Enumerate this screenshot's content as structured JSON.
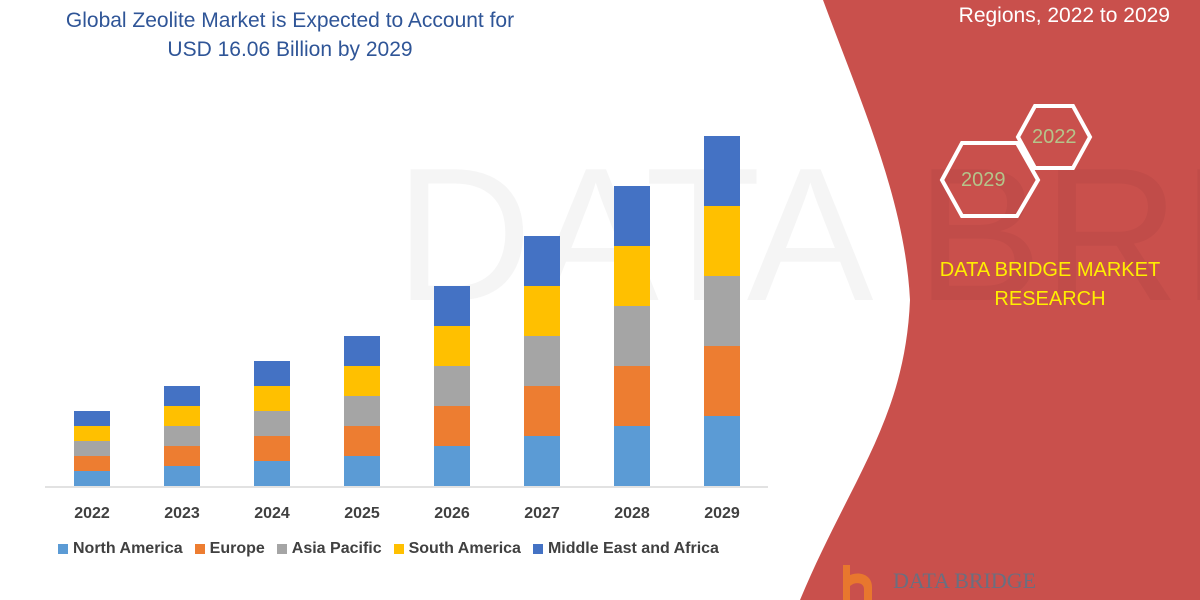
{
  "header": {
    "title": "Global Zeolite Market is Expected to Account for USD 16.06 Billion by 2029",
    "right_subtitle": "Regions, 2022 to 2029"
  },
  "badges": {
    "hex_left": "2029",
    "hex_right": "2022"
  },
  "brand": {
    "name": "DATA BRIDGE MARKET RESEARCH",
    "logo_text": "DATA BRIDGE"
  },
  "colors": {
    "panel": "#c9504c",
    "brand_text": "#ffee00"
  },
  "chart_data": {
    "type": "bar",
    "stacked": true,
    "title": "Global Zeolite Market is Expected to Account for USD 16.06 Billion by 2029",
    "xlabel": "",
    "ylabel": "",
    "y_axis_shown": false,
    "grid": false,
    "legend_position": "bottom",
    "categories": [
      "2022",
      "2023",
      "2024",
      "2025",
      "2026",
      "2027",
      "2028",
      "2029"
    ],
    "series": [
      {
        "name": "North America",
        "color": "#5b9bd5",
        "values": [
          15,
          20,
          25,
          30,
          40,
          50,
          60,
          70
        ]
      },
      {
        "name": "Europe",
        "color": "#ed7d31",
        "values": [
          15,
          20,
          25,
          30,
          40,
          50,
          60,
          70
        ]
      },
      {
        "name": "Asia Pacific",
        "color": "#a5a5a5",
        "values": [
          15,
          20,
          25,
          30,
          40,
          50,
          60,
          70
        ]
      },
      {
        "name": "South America",
        "color": "#ffc000",
        "values": [
          15,
          20,
          25,
          30,
          40,
          50,
          60,
          70
        ]
      },
      {
        "name": "Middle East and Africa",
        "color": "#4472c4",
        "values": [
          15,
          20,
          25,
          30,
          40,
          50,
          60,
          70
        ]
      }
    ]
  }
}
